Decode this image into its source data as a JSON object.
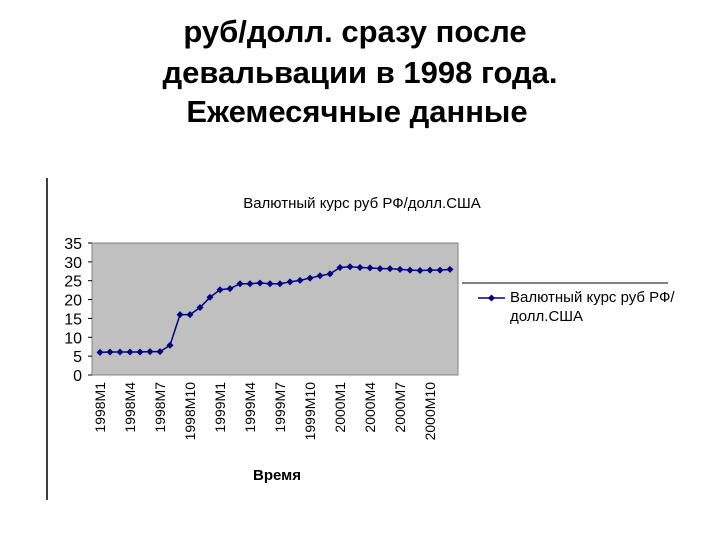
{
  "header": {
    "title_lines": [
      "руб/долл. сразу после",
      "девальвации в 1998 года.",
      "Ежемесячные данные"
    ]
  },
  "chart_data": {
    "type": "line",
    "title": "Валютный курс руб РФ/долл.США",
    "x_label": "Время",
    "categories": [
      "1998M1",
      null,
      null,
      "1998M4",
      null,
      null,
      "1998M7",
      null,
      null,
      "1998M10",
      null,
      null,
      "1999M1",
      null,
      null,
      "1999M4",
      null,
      null,
      "1999M7",
      null,
      null,
      "1999M10",
      null,
      null,
      "2000M1",
      null,
      null,
      "2000M4",
      null,
      null,
      "2000M7",
      null,
      null,
      "2000M10",
      null,
      null
    ],
    "series": [
      {
        "name": "Валютный курс руб РФ/долл.США",
        "color": "#000080",
        "values": [
          6.0,
          6.1,
          6.1,
          6.1,
          6.1,
          6.2,
          6.2,
          7.9,
          16.0,
          16.0,
          17.9,
          20.6,
          22.6,
          22.9,
          24.2,
          24.2,
          24.4,
          24.2,
          24.2,
          24.7,
          25.1,
          25.7,
          26.3,
          26.8,
          28.5,
          28.7,
          28.5,
          28.4,
          28.2,
          28.2,
          28.0,
          27.8,
          27.7,
          27.8,
          27.8,
          28.0
        ]
      }
    ],
    "ylim": [
      0,
      35
    ],
    "yticks": [
      0,
      5,
      10,
      15,
      20,
      25,
      30,
      35
    ],
    "grid": false,
    "legend": "right"
  }
}
